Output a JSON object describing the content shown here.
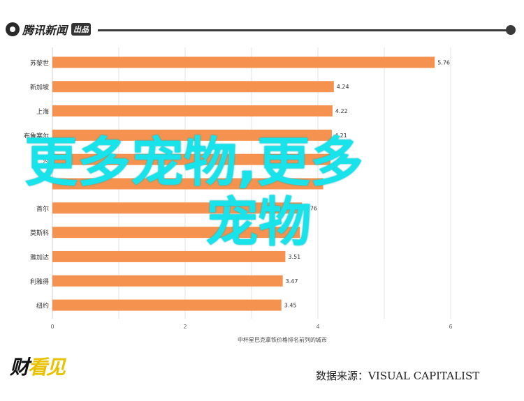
{
  "header": {
    "logo_text": "腾讯新闻",
    "logo_badge": "出品"
  },
  "watermark": {
    "line1": "更多宠物,更多",
    "line2": "宠物"
  },
  "footer": {
    "brand_main": "财",
    "brand_accent": "看见",
    "source": "数据来源：VISUAL CAPITALIST"
  },
  "chart_data": {
    "type": "bar",
    "orientation": "horizontal",
    "categories": [
      "苏黎世",
      "新加坡",
      "上海",
      "布鲁塞尔",
      "贝",
      "",
      "首尔",
      "莫斯科",
      "雅加达",
      "利雅得",
      "纽约"
    ],
    "values": [
      5.76,
      4.24,
      4.22,
      4.21,
      4.19,
      4.08,
      3.76,
      3.73,
      3.51,
      3.47,
      3.45
    ],
    "data_labels": [
      "5.76",
      "4.24",
      "4.22",
      "4.21",
      "",
      "",
      "3.76",
      "",
      "3.51",
      "3.47",
      "3.45"
    ],
    "xlabel": "中杯星巴克拿铁价格排名前列的城市",
    "xticks": [
      0,
      2,
      4,
      6
    ],
    "xlim": [
      0,
      6.4
    ],
    "bar_color": "#f5924f",
    "grid": true
  }
}
